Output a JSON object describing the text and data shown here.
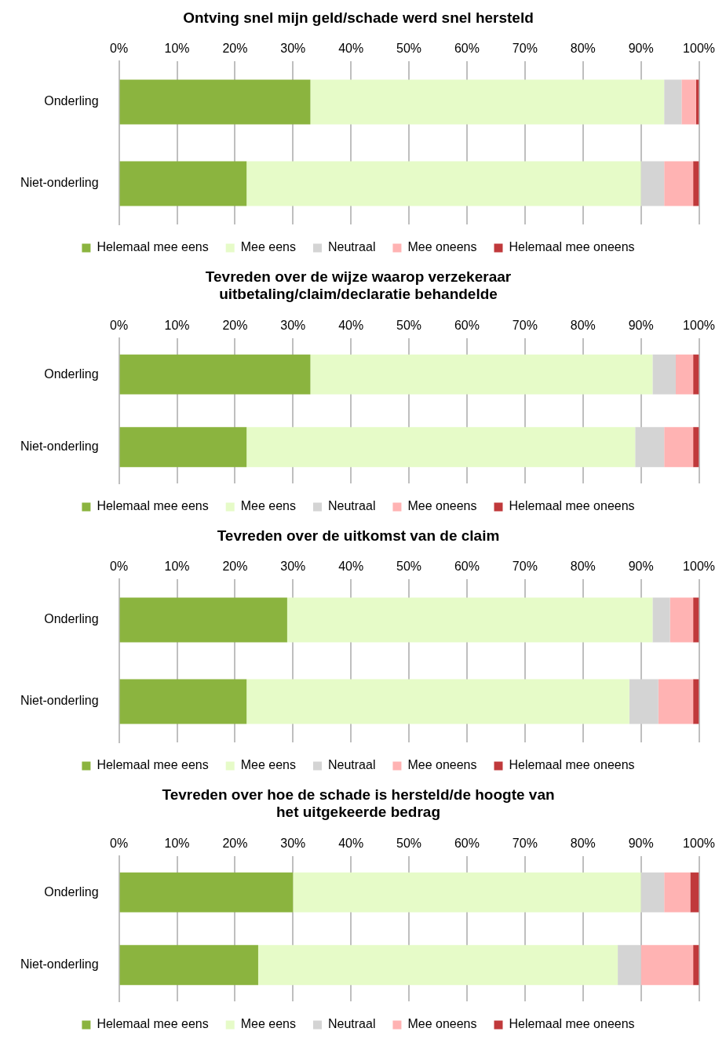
{
  "chart_data": [
    {
      "type": "bar",
      "orientation": "horizontal",
      "stacked": true,
      "title": "Ontving snel mijn geld/schade werd snel hersteld",
      "categories": [
        "Onderling",
        "Niet-onderling"
      ],
      "series": [
        {
          "name": "Helemaal mee eens",
          "color": "#8bb43f",
          "values": [
            33,
            22
          ]
        },
        {
          "name": "Mee eens",
          "color": "#e6fbc8",
          "values": [
            61,
            68
          ]
        },
        {
          "name": "Neutraal",
          "color": "#d4d4d4",
          "values": [
            3,
            4
          ]
        },
        {
          "name": "Mee oneens",
          "color": "#ffb3b3",
          "values": [
            2.5,
            5
          ]
        },
        {
          "name": "Helemaal mee oneens",
          "color": "#c0393b",
          "values": [
            0.5,
            1
          ]
        }
      ],
      "xlim": [
        0,
        100
      ],
      "xticks": [
        {
          "value": 0,
          "label": "0%"
        },
        {
          "value": 10,
          "label": "10%"
        },
        {
          "value": 20,
          "label": "20%"
        },
        {
          "value": 30,
          "label": "30%"
        },
        {
          "value": 40,
          "label": "40%"
        },
        {
          "value": 50,
          "label": "50%"
        },
        {
          "value": 60,
          "label": "60%"
        },
        {
          "value": 70,
          "label": "70%"
        },
        {
          "value": 80,
          "label": "80%"
        },
        {
          "value": 90,
          "label": "90%"
        },
        {
          "value": 100,
          "label": "100%"
        }
      ],
      "grid": "x",
      "legend": "bottom"
    },
    {
      "type": "bar",
      "orientation": "horizontal",
      "stacked": true,
      "title": "Tevreden over de wijze waarop verzekeraar uitbetaling/claim/declaratie behandelde",
      "categories": [
        "Onderling",
        "Niet-onderling"
      ],
      "series": [
        {
          "name": "Helemaal mee eens",
          "color": "#8bb43f",
          "values": [
            33,
            22
          ]
        },
        {
          "name": "Mee eens",
          "color": "#e6fbc8",
          "values": [
            59,
            67
          ]
        },
        {
          "name": "Neutraal",
          "color": "#d4d4d4",
          "values": [
            4,
            5
          ]
        },
        {
          "name": "Mee oneens",
          "color": "#ffb3b3",
          "values": [
            3,
            5
          ]
        },
        {
          "name": "Helemaal mee oneens",
          "color": "#c0393b",
          "values": [
            1,
            1
          ]
        }
      ],
      "xlim": [
        0,
        100
      ],
      "xticks": [
        {
          "value": 0,
          "label": "0%"
        },
        {
          "value": 10,
          "label": "10%"
        },
        {
          "value": 20,
          "label": "20%"
        },
        {
          "value": 30,
          "label": "30%"
        },
        {
          "value": 40,
          "label": "40%"
        },
        {
          "value": 50,
          "label": "50%"
        },
        {
          "value": 60,
          "label": "60%"
        },
        {
          "value": 70,
          "label": "70%"
        },
        {
          "value": 80,
          "label": "80%"
        },
        {
          "value": 90,
          "label": "90%"
        },
        {
          "value": 100,
          "label": "100%"
        }
      ],
      "grid": "x",
      "legend": "bottom"
    },
    {
      "type": "bar",
      "orientation": "horizontal",
      "stacked": true,
      "title": "Tevreden over de uitkomst van de claim",
      "categories": [
        "Onderling",
        "Niet-onderling"
      ],
      "series": [
        {
          "name": "Helemaal mee eens",
          "color": "#8bb43f",
          "values": [
            29,
            22
          ]
        },
        {
          "name": "Mee eens",
          "color": "#e6fbc8",
          "values": [
            63,
            66
          ]
        },
        {
          "name": "Neutraal",
          "color": "#d4d4d4",
          "values": [
            3,
            5
          ]
        },
        {
          "name": "Mee oneens",
          "color": "#ffb3b3",
          "values": [
            4,
            6
          ]
        },
        {
          "name": "Helemaal mee oneens",
          "color": "#c0393b",
          "values": [
            1,
            1
          ]
        }
      ],
      "xlim": [
        0,
        100
      ],
      "xticks": [
        {
          "value": 0,
          "label": "0%"
        },
        {
          "value": 10,
          "label": "10%"
        },
        {
          "value": 20,
          "label": "20%"
        },
        {
          "value": 30,
          "label": "30%"
        },
        {
          "value": 40,
          "label": "40%"
        },
        {
          "value": 50,
          "label": "50%"
        },
        {
          "value": 60,
          "label": "60%"
        },
        {
          "value": 70,
          "label": "70%"
        },
        {
          "value": 80,
          "label": "80%"
        },
        {
          "value": 90,
          "label": "90%"
        },
        {
          "value": 100,
          "label": "100%"
        }
      ],
      "grid": "x",
      "legend": "bottom"
    },
    {
      "type": "bar",
      "orientation": "horizontal",
      "stacked": true,
      "title": "Tevreden over hoe de schade is hersteld/de hoogte van het uitgekeerde bedrag",
      "categories": [
        "Onderling",
        "Niet-onderling"
      ],
      "series": [
        {
          "name": "Helemaal mee eens",
          "color": "#8bb43f",
          "values": [
            30,
            24
          ]
        },
        {
          "name": "Mee eens",
          "color": "#e6fbc8",
          "values": [
            60,
            62
          ]
        },
        {
          "name": "Neutraal",
          "color": "#d4d4d4",
          "values": [
            4,
            4
          ]
        },
        {
          "name": "Mee oneens",
          "color": "#ffb3b3",
          "values": [
            4.5,
            9
          ]
        },
        {
          "name": "Helemaal mee oneens",
          "color": "#c0393b",
          "values": [
            1.5,
            1
          ]
        }
      ],
      "xlim": [
        0,
        100
      ],
      "xticks": [
        {
          "value": 0,
          "label": "0%"
        },
        {
          "value": 10,
          "label": "10%"
        },
        {
          "value": 20,
          "label": "20%"
        },
        {
          "value": 30,
          "label": "30%"
        },
        {
          "value": 40,
          "label": "40%"
        },
        {
          "value": 50,
          "label": "50%"
        },
        {
          "value": 60,
          "label": "60%"
        },
        {
          "value": 70,
          "label": "70%"
        },
        {
          "value": 80,
          "label": "80%"
        },
        {
          "value": 90,
          "label": "90%"
        },
        {
          "value": 100,
          "label": "100%"
        }
      ],
      "grid": "x",
      "legend": "bottom"
    }
  ]
}
